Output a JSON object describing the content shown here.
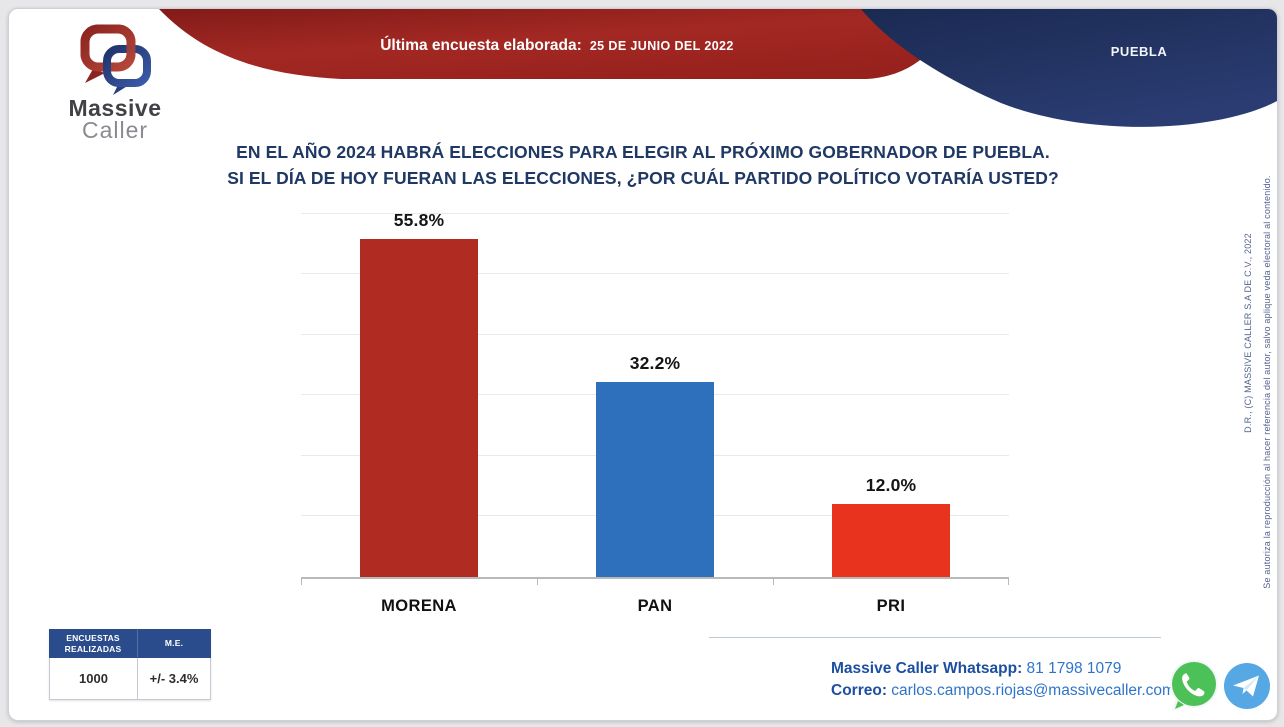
{
  "header": {
    "last_poll_label": "Última encuesta elaborada:",
    "last_poll_date": "25 DE JUNIO DEL 2022",
    "region": "PUEBLA"
  },
  "logo": {
    "line1": "Massive",
    "line2": "Caller"
  },
  "question": {
    "line1": "EN EL AÑO 2024 HABRÁ ELECCIONES PARA ELEGIR AL PRÓXIMO GOBERNADOR DE PUEBLA.",
    "line2": "SI EL DÍA DE HOY FUERAN LAS ELECCIONES, ¿POR CUÁL PARTIDO POLÍTICO VOTARÍA USTED?"
  },
  "chart_data": {
    "type": "bar",
    "title": "",
    "xlabel": "",
    "ylabel": "",
    "categories": [
      "MORENA",
      "PAN",
      "PRI"
    ],
    "values": [
      55.8,
      32.2,
      12.0
    ],
    "value_labels": [
      "55.8%",
      "32.2%",
      "12.0%"
    ],
    "bar_colors": [
      "#b02b22",
      "#2e70bc",
      "#e8331e"
    ],
    "ylim": [
      0,
      60
    ],
    "gridline_step": 10,
    "grid": true,
    "legend": "none"
  },
  "stats_table": {
    "headers": [
      "ENCUESTAS REALIZADAS",
      "M.E."
    ],
    "rows": [
      [
        "1000",
        "+/- 3.4%"
      ]
    ]
  },
  "contact": {
    "whatsapp_label": "Massive Caller Whatsapp:",
    "whatsapp_number": "81 1798 1079",
    "email_label": "Correo:",
    "email": "carlos.campos.riojas@massivecaller.com"
  },
  "icons": {
    "whatsapp": "whatsapp-icon",
    "telegram": "telegram-icon"
  },
  "copyright": {
    "line1": "D.R., (C) MASSIVE CALLER S.A DE C.V., 2022",
    "line2": "Se autoriza la reproducción al hacer referencia del autor, salvo aplique veda electoral al contenido."
  },
  "colors": {
    "banner_red": "#99231f",
    "banner_navy": "#223365",
    "title_navy": "#1f3864",
    "morena_bar": "#b02b22",
    "pan_bar": "#2e70bc",
    "pri_bar": "#e8331e",
    "table_header_blue": "#2b4c8c",
    "contact_dark_blue": "#1d4fa1",
    "contact_light_blue": "#2f74c9",
    "whatsapp_green": "#4cc158",
    "telegram_blue": "#55a8e4"
  }
}
